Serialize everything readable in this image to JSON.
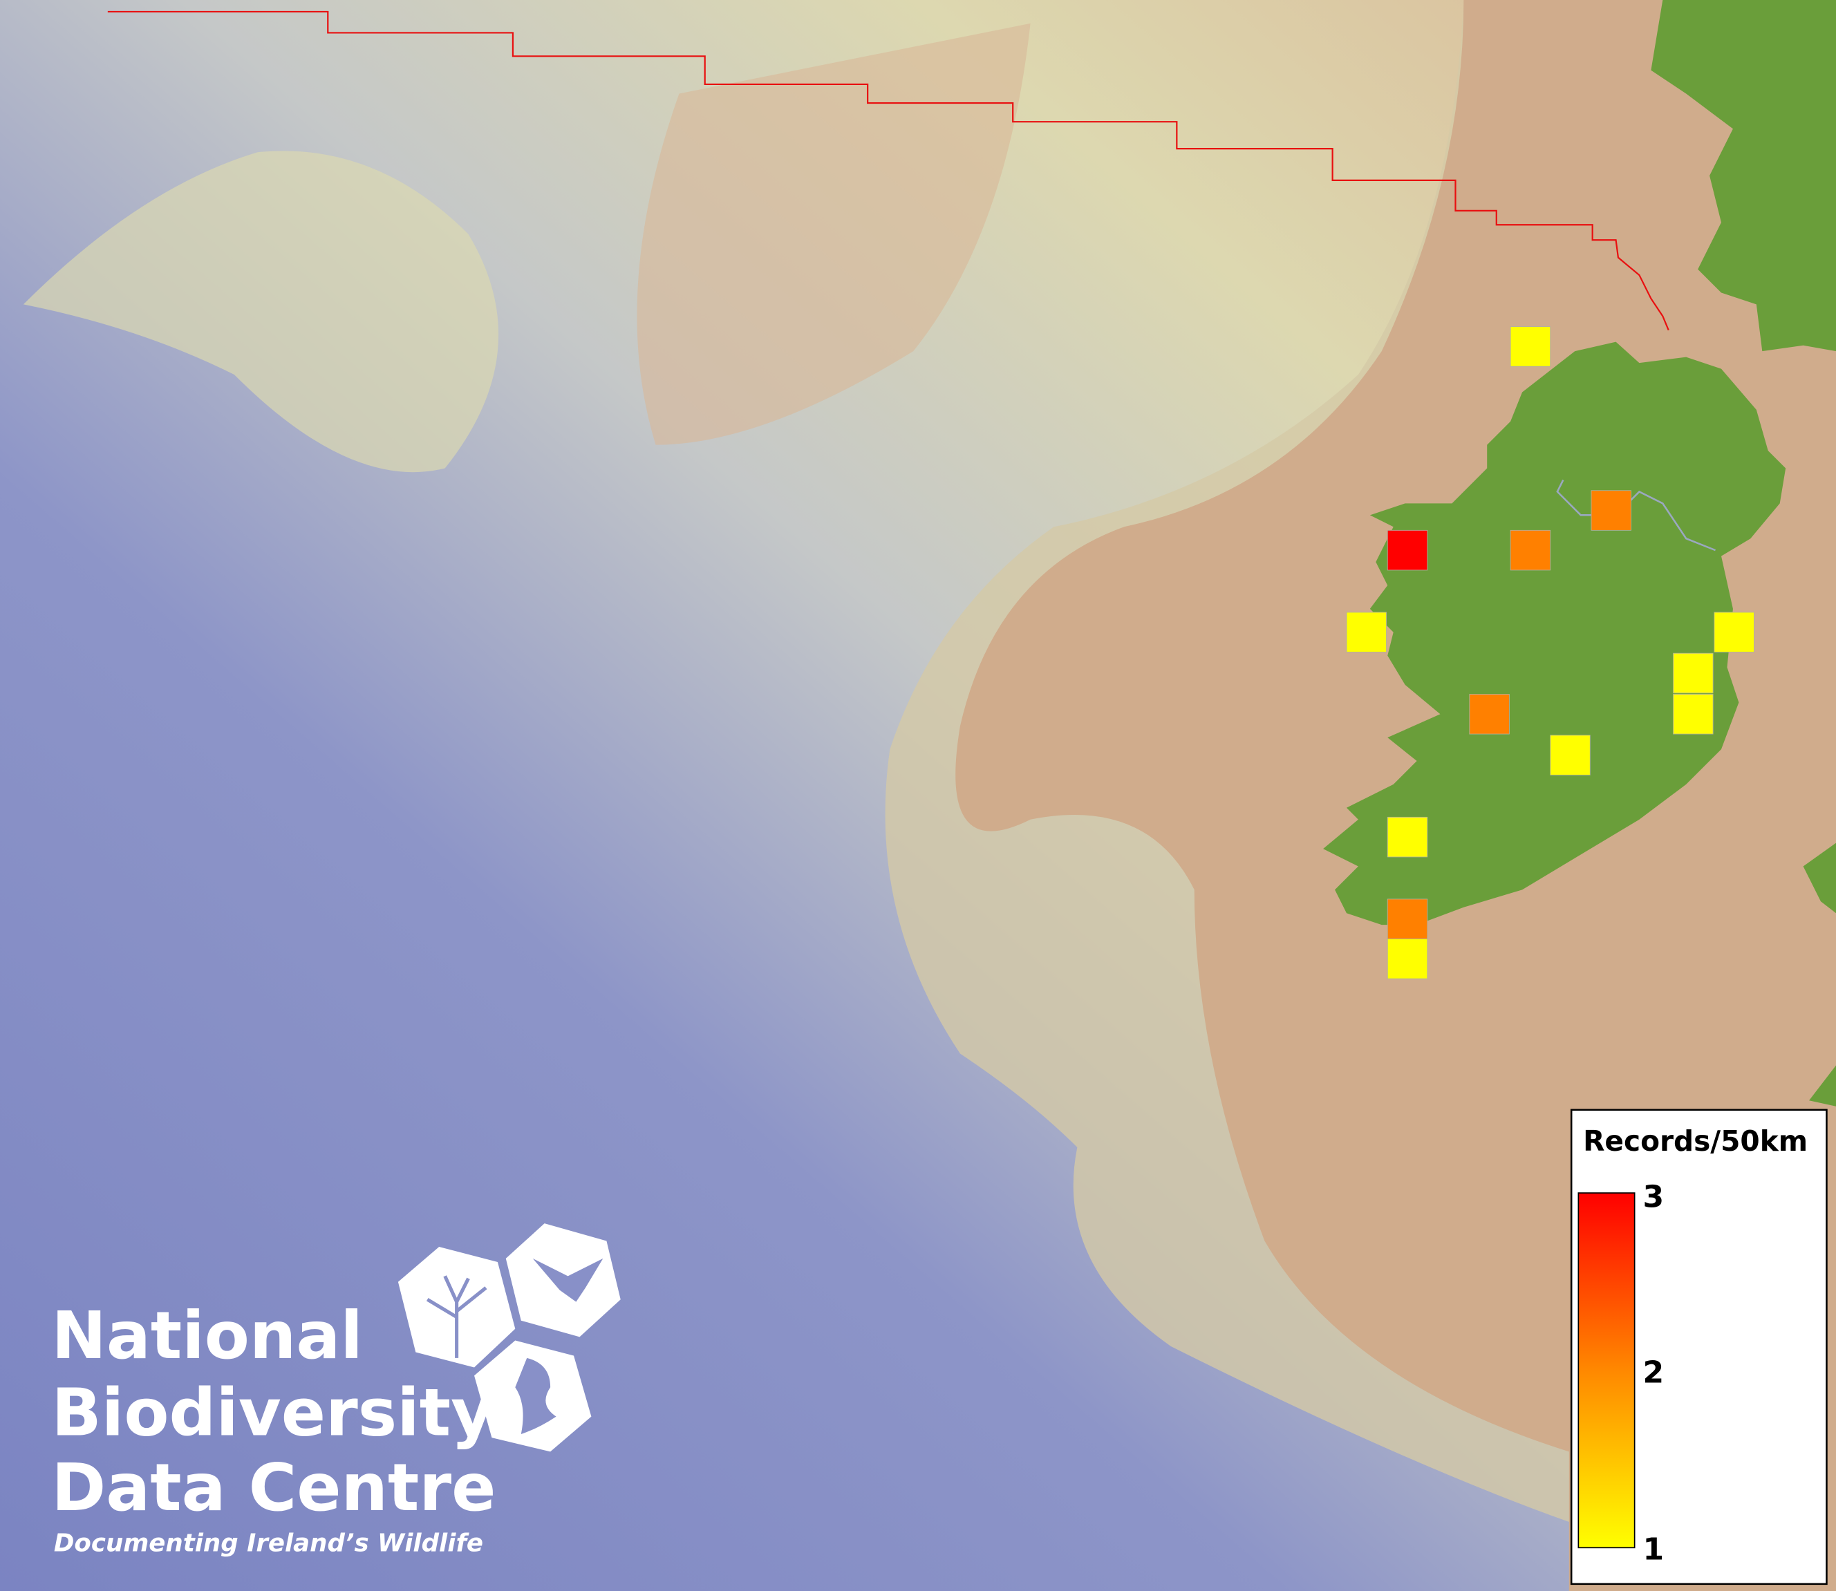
{
  "map": {
    "legend": {
      "title": "Records/50km",
      "max_label": "3",
      "mid_label": "2",
      "min_label": "1",
      "color_low": "#ffff00",
      "color_mid": "#ff8000",
      "color_high": "#ff0000"
    },
    "grid_cells": [
      {
        "records": 1
      },
      {
        "records": 2
      },
      {
        "records": 3
      },
      {
        "records": 2
      },
      {
        "records": 1
      },
      {
        "records": 1
      },
      {
        "records": 1
      },
      {
        "records": 1
      },
      {
        "records": 2
      },
      {
        "records": 1
      },
      {
        "records": 1
      },
      {
        "records": 2
      },
      {
        "records": 1
      }
    ],
    "colors": {
      "land": "#6a9e3a",
      "shelf": "#d8d2a8",
      "deep_sea": "#7f87c4",
      "shallow_tan": "#d0ac8c",
      "boundary": "#e81010"
    }
  },
  "logo": {
    "line1": "National",
    "line2": "Biodiversity",
    "line3": "Data Centre",
    "tagline": "Documenting Ireland’s Wildlife"
  }
}
